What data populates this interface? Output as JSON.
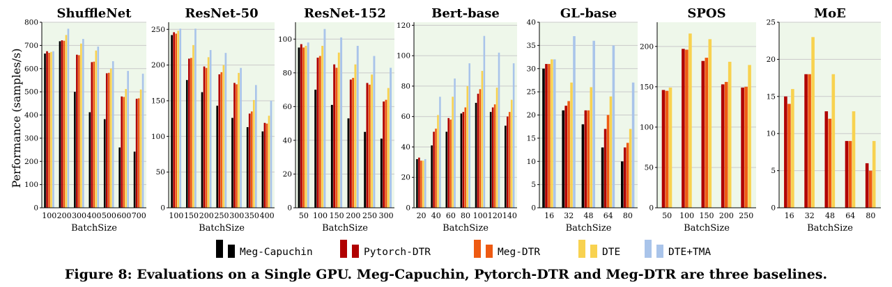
{
  "figure": {
    "ylabel": "Performance (samples/s)",
    "caption": "Figure 8: Evaluations on a Single GPU. Meg-Capuchin, Pytorch-DTR and Meg-DTR are three baselines."
  },
  "legend": [
    {
      "name": "Meg-Capuchin",
      "color": "#000000"
    },
    {
      "name": "Pytorch-DTR",
      "color": "#b00000"
    },
    {
      "name": "Meg-DTR",
      "color": "#ee5a12"
    },
    {
      "name": "DTE",
      "color": "#f8d250"
    },
    {
      "name": "DTE+TMA",
      "color": "#a9c4ea"
    }
  ],
  "colors": {
    "plot_background": "#eef7ea",
    "grid": "#c9c9c9"
  },
  "chart_data": [
    {
      "type": "bar",
      "title": "ShuffleNet",
      "xlabel": "BatchSize",
      "categories": [
        "100",
        "200",
        "300",
        "400",
        "500",
        "600",
        "700"
      ],
      "ylim": [
        0,
        800
      ],
      "yticks": [
        0,
        100,
        200,
        300,
        400,
        500,
        600,
        700,
        800
      ],
      "series": [
        {
          "name": "Meg-Capuchin",
          "values": [
            665,
            718,
            500,
            412,
            382,
            260,
            242
          ]
        },
        {
          "name": "Pytorch-DTR",
          "values": [
            675,
            722,
            660,
            628,
            580,
            480,
            470
          ]
        },
        {
          "name": "Meg-DTR",
          "values": [
            668,
            720,
            658,
            630,
            582,
            478,
            472
          ]
        },
        {
          "name": "DTE",
          "values": [
            672,
            745,
            708,
            678,
            600,
            512,
            510
          ]
        },
        {
          "name": "DTE+TMA",
          "values": [
            675,
            772,
            728,
            695,
            632,
            590,
            578
          ]
        }
      ]
    },
    {
      "type": "bar",
      "title": "ResNet-50",
      "xlabel": "BatchSize",
      "categories": [
        "100",
        "150",
        "200",
        "250",
        "300",
        "350",
        "400"
      ],
      "ylim": [
        0,
        260
      ],
      "yticks": [
        0,
        50,
        100,
        150,
        200,
        250
      ],
      "series": [
        {
          "name": "Meg-Capuchin",
          "values": [
            242,
            179,
            162,
            143,
            126,
            113,
            107
          ]
        },
        {
          "name": "Pytorch-DTR",
          "values": [
            246,
            209,
            198,
            187,
            175,
            132,
            119
          ]
        },
        {
          "name": "Meg-DTR",
          "values": [
            244,
            210,
            196,
            190,
            173,
            135,
            118
          ]
        },
        {
          "name": "DTE",
          "values": [
            248,
            228,
            211,
            200,
            189,
            151,
            129
          ]
        },
        {
          "name": "DTE+TMA",
          "values": [
            251,
            251,
            221,
            217,
            196,
            172,
            150
          ]
        }
      ]
    },
    {
      "type": "bar",
      "title": "ResNet-152",
      "xlabel": "BatchSize",
      "categories": [
        "50",
        "100",
        "150",
        "200",
        "250",
        "300"
      ],
      "ylim": [
        0,
        110
      ],
      "yticks": [
        0,
        20,
        40,
        60,
        80,
        100
      ],
      "series": [
        {
          "name": "Meg-Capuchin",
          "values": [
            95,
            70,
            61,
            53,
            45,
            41
          ]
        },
        {
          "name": "Pytorch-DTR",
          "values": [
            97,
            89,
            85,
            76,
            74,
            63
          ]
        },
        {
          "name": "Meg-DTR",
          "values": [
            95,
            90,
            83,
            77,
            73,
            64
          ]
        },
        {
          "name": "DTE",
          "values": [
            96,
            96,
            92,
            85,
            79,
            71
          ]
        },
        {
          "name": "DTE+TMA",
          "values": [
            98,
            106,
            101,
            96,
            90,
            83
          ]
        }
      ]
    },
    {
      "type": "bar",
      "title": "Bert-base",
      "xlabel": "BatchSize",
      "categories": [
        "20",
        "40",
        "60",
        "80",
        "100",
        "120",
        "140"
      ],
      "ylim": [
        0,
        122
      ],
      "yticks": [
        0,
        20,
        40,
        60,
        80,
        100,
        120
      ],
      "series": [
        {
          "name": "Meg-Capuchin",
          "values": [
            32,
            41,
            50,
            62,
            69,
            63,
            54
          ]
        },
        {
          "name": "Pytorch-DTR",
          "values": [
            33,
            50,
            59,
            63,
            75,
            66,
            60
          ]
        },
        {
          "name": "Meg-DTR",
          "values": [
            31,
            52,
            58,
            66,
            78,
            68,
            63
          ]
        },
        {
          "name": "DTE",
          "values": [
            31,
            61,
            73,
            80,
            90,
            79,
            71
          ]
        },
        {
          "name": "DTE+TMA",
          "values": [
            32,
            73,
            85,
            95,
            113,
            102,
            95
          ]
        }
      ]
    },
    {
      "type": "bar",
      "title": "GL-base",
      "xlabel": "BatchSize",
      "categories": [
        "16",
        "32",
        "48",
        "64",
        "80"
      ],
      "ylim": [
        0,
        40
      ],
      "yticks": [
        0,
        5,
        10,
        15,
        20,
        25,
        30,
        35,
        40
      ],
      "series": [
        {
          "name": "Meg-Capuchin",
          "values": [
            30,
            21,
            18,
            13,
            10
          ]
        },
        {
          "name": "Pytorch-DTR",
          "values": [
            31,
            22,
            21,
            17,
            13
          ]
        },
        {
          "name": "Meg-DTR",
          "values": [
            31,
            23,
            21,
            20,
            14
          ]
        },
        {
          "name": "DTE",
          "values": [
            32,
            27,
            26,
            24,
            17
          ]
        },
        {
          "name": "DTE+TMA",
          "values": [
            32,
            37,
            36,
            35,
            27
          ]
        }
      ]
    },
    {
      "type": "bar",
      "title": "SPOS",
      "xlabel": "BatchSize",
      "categories": [
        "50",
        "100",
        "150",
        "200",
        "250"
      ],
      "ylim": [
        0,
        230
      ],
      "yticks": [
        0,
        50,
        100,
        150,
        200
      ],
      "series": [
        {
          "name": "Pytorch-DTR",
          "values": [
            146,
            197,
            182,
            153,
            149
          ]
        },
        {
          "name": "Meg-DTR",
          "values": [
            145,
            196,
            186,
            156,
            150
          ]
        },
        {
          "name": "DTE",
          "values": [
            149,
            216,
            209,
            181,
            177
          ]
        }
      ]
    },
    {
      "type": "bar",
      "title": "MoE",
      "xlabel": "BatchSize",
      "categories": [
        "16",
        "32",
        "48",
        "64",
        "80"
      ],
      "ylim": [
        0,
        25
      ],
      "yticks": [
        0,
        5,
        10,
        15,
        20,
        25
      ],
      "series": [
        {
          "name": "Pytorch-DTR",
          "values": [
            15,
            18,
            13,
            9,
            6
          ]
        },
        {
          "name": "Meg-DTR",
          "values": [
            14,
            18,
            12,
            9,
            5
          ]
        },
        {
          "name": "DTE",
          "values": [
            16,
            23,
            18,
            13,
            9
          ]
        }
      ]
    }
  ]
}
